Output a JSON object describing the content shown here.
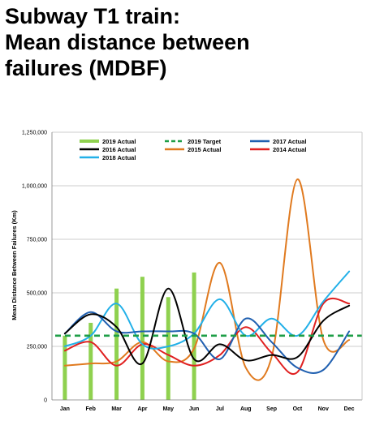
{
  "title": {
    "line1": "Subway T1 train:",
    "line2": "Mean distance between",
    "line3": "failures (MDBF)"
  },
  "chart_data": {
    "type": "line",
    "title": "Subway T1 train: Mean distance between failures (MDBF)",
    "xlabel": "",
    "ylabel": "Mean Distance Between Failures (Km)",
    "categories": [
      "Jan",
      "Feb",
      "Mar",
      "Apr",
      "May",
      "Jun",
      "Jul",
      "Aug",
      "Sep",
      "Oct",
      "Nov",
      "Dec"
    ],
    "ylim": [
      0,
      1250000
    ],
    "yticks": [
      0,
      250000,
      500000,
      750000,
      1000000,
      1250000
    ],
    "ytick_labels": [
      "0",
      "250,000",
      "500,000",
      "750,000",
      "1,000,000",
      "1,250,000"
    ],
    "grid": "horizontal",
    "legend_position": "top",
    "bars": {
      "name": "2019 Actual",
      "color": "#8fd14f",
      "values": [
        300000,
        360000,
        520000,
        575000,
        480000,
        595000
      ]
    },
    "series": [
      {
        "name": "2019 Target",
        "color": "#1e9e47",
        "dashed": true,
        "values": [
          300000,
          300000,
          300000,
          300000,
          300000,
          300000,
          300000,
          300000,
          300000,
          300000,
          300000,
          300000
        ]
      },
      {
        "name": "2017 Actual",
        "color": "#1f5fb0",
        "dashed": false,
        "values": [
          310000,
          410000,
          320000,
          320000,
          320000,
          310000,
          190000,
          380000,
          270000,
          150000,
          140000,
          320000
        ]
      },
      {
        "name": "2016 Actual",
        "color": "#000000",
        "dashed": false,
        "values": [
          310000,
          400000,
          340000,
          170000,
          520000,
          190000,
          260000,
          185000,
          210000,
          200000,
          370000,
          440000
        ]
      },
      {
        "name": "2015 Actual",
        "color": "#e07a1f",
        "dashed": false,
        "values": [
          160000,
          170000,
          180000,
          270000,
          180000,
          240000,
          640000,
          150000,
          200000,
          1030000,
          280000,
          280000
        ]
      },
      {
        "name": "2014 Actual",
        "color": "#e02020",
        "dashed": false,
        "values": [
          230000,
          270000,
          160000,
          260000,
          210000,
          160000,
          210000,
          340000,
          220000,
          130000,
          450000,
          450000
        ]
      },
      {
        "name": "2018 Actual",
        "color": "#22b0e8",
        "dashed": false,
        "values": [
          250000,
          300000,
          450000,
          260000,
          250000,
          310000,
          470000,
          300000,
          380000,
          300000,
          460000,
          600000
        ]
      }
    ]
  }
}
